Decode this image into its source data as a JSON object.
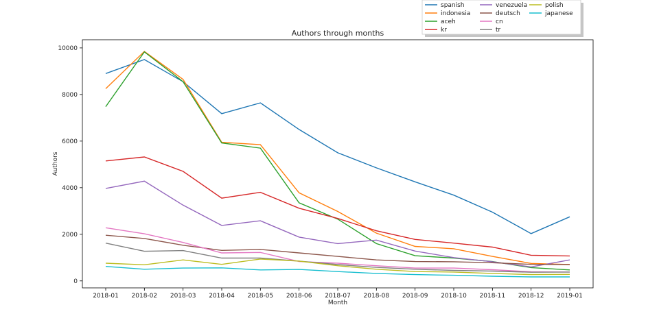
{
  "chart_data": {
    "type": "line",
    "title": "Authors through months",
    "xlabel": "Month",
    "ylabel": "Authors",
    "ylim": [
      -300,
      10350
    ],
    "categories": [
      "2018-01",
      "2018-02",
      "2018-03",
      "2018-04",
      "2018-05",
      "2018-06",
      "2018-07",
      "2018-08",
      "2018-09",
      "2018-10",
      "2018-11",
      "2018-12",
      "2019-01"
    ],
    "yticks": [
      0,
      2000,
      4000,
      6000,
      8000,
      10000
    ],
    "legend_position": "top-right-outside",
    "series": [
      {
        "name": "spanish",
        "color": "#1f77b4",
        "values": [
          8900,
          9500,
          8550,
          7180,
          7640,
          6500,
          5500,
          4850,
          4250,
          3680,
          2950,
          2030,
          2750
        ]
      },
      {
        "name": "indonesia",
        "color": "#ff7f0e",
        "values": [
          8250,
          9850,
          8650,
          5950,
          5850,
          3780,
          2980,
          2050,
          1480,
          1380,
          1050,
          750,
          700
        ]
      },
      {
        "name": "aceh",
        "color": "#2ca02c",
        "values": [
          7480,
          9830,
          8550,
          5920,
          5700,
          3350,
          2650,
          1600,
          1080,
          980,
          830,
          570,
          470
        ]
      },
      {
        "name": "kr",
        "color": "#d62728",
        "values": [
          5150,
          5320,
          4700,
          3550,
          3800,
          3120,
          2680,
          2150,
          1780,
          1620,
          1450,
          1100,
          1070
        ]
      },
      {
        "name": "venezuela",
        "color": "#9467bd",
        "values": [
          3970,
          4280,
          3250,
          2380,
          2580,
          1880,
          1600,
          1750,
          1280,
          1000,
          820,
          600,
          900
        ]
      },
      {
        "name": "deutsch",
        "color": "#8c564b",
        "values": [
          1960,
          1820,
          1530,
          1310,
          1350,
          1200,
          1050,
          900,
          830,
          820,
          780,
          710,
          700
        ]
      },
      {
        "name": "cn",
        "color": "#e377c2",
        "values": [
          2280,
          2020,
          1650,
          1200,
          1220,
          830,
          760,
          650,
          550,
          550,
          480,
          390,
          380
        ]
      },
      {
        "name": "tr",
        "color": "#7f7f7f",
        "values": [
          1620,
          1270,
          1300,
          980,
          980,
          850,
          700,
          580,
          500,
          450,
          420,
          370,
          380
        ]
      },
      {
        "name": "polish",
        "color": "#bcbd22",
        "values": [
          760,
          690,
          900,
          710,
          940,
          850,
          650,
          500,
          400,
          380,
          320,
          270,
          280
        ]
      },
      {
        "name": "japanese",
        "color": "#17becf",
        "values": [
          620,
          500,
          550,
          560,
          470,
          490,
          400,
          320,
          270,
          240,
          200,
          170,
          170
        ]
      }
    ]
  }
}
